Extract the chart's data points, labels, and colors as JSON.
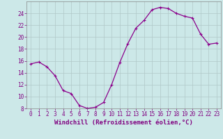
{
  "x": [
    0,
    1,
    2,
    3,
    4,
    5,
    6,
    7,
    8,
    9,
    10,
    11,
    12,
    13,
    14,
    15,
    16,
    17,
    18,
    19,
    20,
    21,
    22,
    23
  ],
  "y": [
    15.5,
    15.8,
    15.0,
    13.5,
    11.0,
    10.5,
    8.5,
    8.0,
    8.2,
    9.0,
    12.0,
    15.7,
    18.9,
    21.5,
    22.8,
    24.6,
    25.0,
    24.8,
    24.0,
    23.5,
    23.2,
    20.5,
    18.8,
    19.0
  ],
  "line_color": "#8B008B",
  "marker": "+",
  "marker_size": 3,
  "marker_lw": 0.8,
  "line_width": 0.9,
  "bg_color": "#cce8e8",
  "grid_color": "#b0c8c8",
  "xlabel": "Windchill (Refroidissement éolien,°C)",
  "ylim": [
    8,
    26
  ],
  "xlim": [
    -0.5,
    23.5
  ],
  "yticks": [
    8,
    10,
    12,
    14,
    16,
    18,
    20,
    22,
    24
  ],
  "xticks": [
    0,
    1,
    2,
    3,
    4,
    5,
    6,
    7,
    8,
    9,
    10,
    11,
    12,
    13,
    14,
    15,
    16,
    17,
    18,
    19,
    20,
    21,
    22,
    23
  ],
  "tick_color": "#800080",
  "label_color": "#800080",
  "tick_fontsize": 5.5,
  "xlabel_fontsize": 6.5
}
